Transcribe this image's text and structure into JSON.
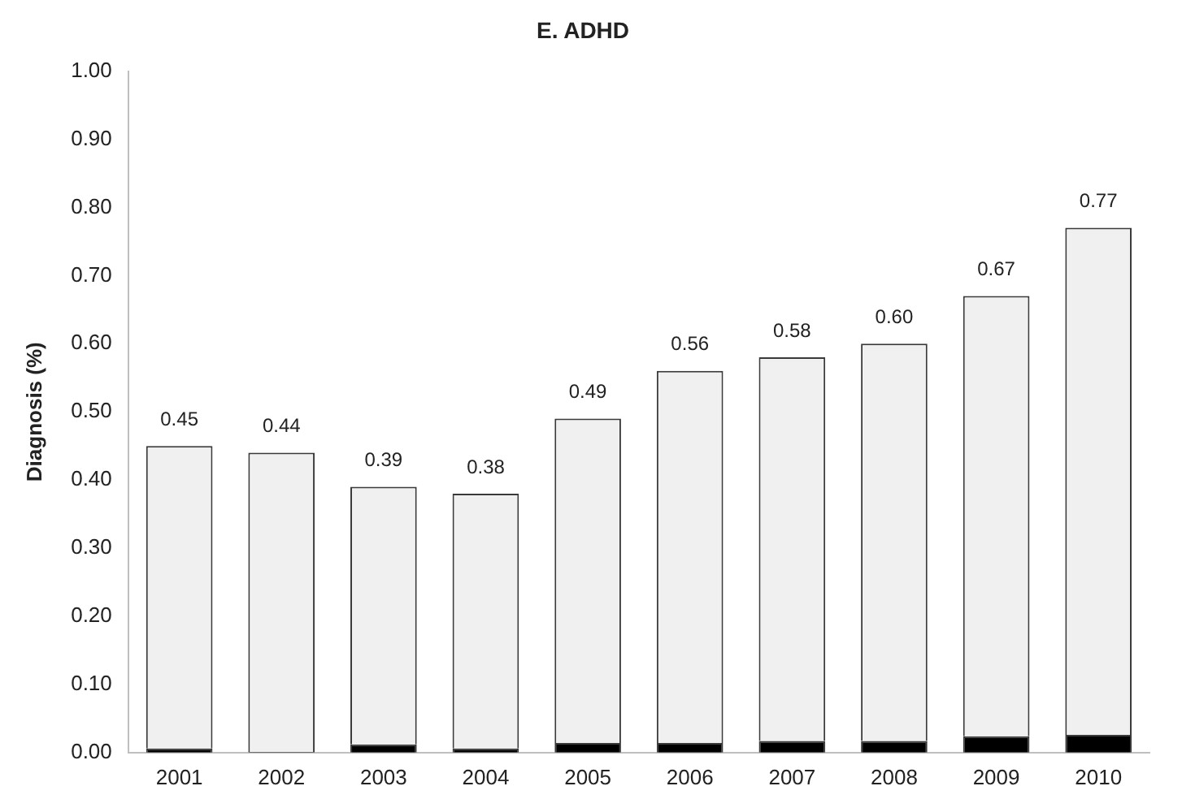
{
  "chart_data": {
    "type": "bar",
    "title": "E. ADHD",
    "ylabel": "Diagnosis (%)",
    "stacked": true,
    "categories": [
      "2001",
      "2002",
      "2003",
      "2004",
      "2005",
      "2006",
      "2007",
      "2008",
      "2009",
      "2010"
    ],
    "series": [
      {
        "color": "#000000",
        "values": [
          0.006,
          0.001,
          0.012,
          0.006,
          0.014,
          0.014,
          0.017,
          0.017,
          0.024,
          0.026
        ]
      },
      {
        "color": "#f0f0f0",
        "values": [
          0.444,
          0.439,
          0.378,
          0.374,
          0.476,
          0.546,
          0.563,
          0.583,
          0.646,
          0.744
        ]
      }
    ],
    "totals": [
      "0.45",
      "0.44",
      "0.39",
      "0.38",
      "0.49",
      "0.56",
      "0.58",
      "0.60",
      "0.67",
      "0.77"
    ],
    "ylim": [
      0,
      1
    ],
    "yticks": [
      {
        "value": 0,
        "label": "0.00"
      },
      {
        "value": 0.1,
        "label": "0.10"
      },
      {
        "value": 0.2,
        "label": "0.20"
      },
      {
        "value": 0.3,
        "label": "0.30"
      },
      {
        "value": 0.4,
        "label": "0.40"
      },
      {
        "value": 0.5,
        "label": "0.50"
      },
      {
        "value": 0.6,
        "label": "0.60"
      },
      {
        "value": 0.7,
        "label": "0.70"
      },
      {
        "value": 0.8,
        "label": "0.80"
      },
      {
        "value": 0.9,
        "label": "0.90"
      },
      {
        "value": 1,
        "label": "1.00"
      }
    ],
    "grid": false,
    "legend": false
  }
}
